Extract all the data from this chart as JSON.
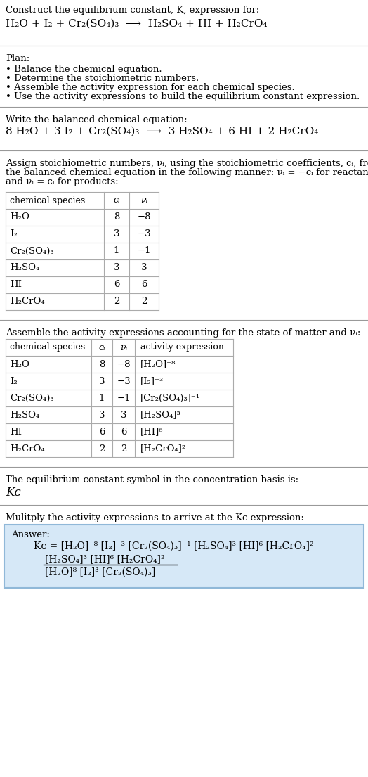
{
  "title_line1": "Construct the equilibrium constant, K, expression for:",
  "title_line2": "H₂O + I₂ + Cr₂(SO₄)₃  ⟶  H₂SO₄ + HI + H₂CrO₄",
  "plan_header": "Plan:",
  "plan_items": [
    "• Balance the chemical equation.",
    "• Determine the stoichiometric numbers.",
    "• Assemble the activity expression for each chemical species.",
    "• Use the activity expressions to build the equilibrium constant expression."
  ],
  "balanced_header": "Write the balanced chemical equation:",
  "balanced_eq": "8 H₂O + 3 I₂ + Cr₂(SO₄)₃  ⟶  3 H₂SO₄ + 6 HI + 2 H₂CrO₄",
  "stoich_header_lines": [
    "Assign stoichiometric numbers, νᵢ, using the stoichiometric coefficients, cᵢ, from",
    "the balanced chemical equation in the following manner: νᵢ = −cᵢ for reactants",
    "and νᵢ = cᵢ for products:"
  ],
  "table1_headers": [
    "chemical species",
    "cᵢ",
    "νᵢ"
  ],
  "table1_rows": [
    [
      "H₂O",
      "8",
      "−8"
    ],
    [
      "I₂",
      "3",
      "−3"
    ],
    [
      "Cr₂(SO₄)₃",
      "1",
      "−1"
    ],
    [
      "H₂SO₄",
      "3",
      "3"
    ],
    [
      "HI",
      "6",
      "6"
    ],
    [
      "H₂CrO₄",
      "2",
      "2"
    ]
  ],
  "activity_header": "Assemble the activity expressions accounting for the state of matter and νᵢ:",
  "table2_headers": [
    "chemical species",
    "cᵢ",
    "νᵢ",
    "activity expression"
  ],
  "table2_rows": [
    [
      "H₂O",
      "8",
      "−8",
      "[H₂O]⁻⁸"
    ],
    [
      "I₂",
      "3",
      "−3",
      "[I₂]⁻³"
    ],
    [
      "Cr₂(SO₄)₃",
      "1",
      "−1",
      "[Cr₂(SO₄)₃]⁻¹"
    ],
    [
      "H₂SO₄",
      "3",
      "3",
      "[H₂SO₄]³"
    ],
    [
      "HI",
      "6",
      "6",
      "[HI]⁶"
    ],
    [
      "H₂CrO₄",
      "2",
      "2",
      "[H₂CrO₄]²"
    ]
  ],
  "kc_header": "The equilibrium constant symbol in the concentration basis is:",
  "kc_symbol": "Kᴄ",
  "multiply_header": "Mulitply the activity expressions to arrive at the Kᴄ expression:",
  "answer_label": "Answer:",
  "answer_kc_line": "Kᴄ = [H₂O]⁻⁸ [I₂]⁻³ [Cr₂(SO₄)₃]⁻¹ [H₂SO₄]³ [HI]⁶ [H₂CrO₄]²",
  "answer_num": "[H₂SO₄]³ [HI]⁶ [H₂CrO₄]²",
  "answer_den": "[H₂O]⁸ [I₂]³ [Cr₂(SO₄)₃]",
  "bg_color": "#ffffff",
  "text_color": "#000000",
  "answer_box_facecolor": "#d6e8f7",
  "answer_box_edgecolor": "#90b8d8",
  "table_line_color": "#aaaaaa",
  "sep_line_color": "#999999",
  "font_size": 9.5,
  "title2_font_size": 11.0,
  "balanced_eq_font_size": 11.0,
  "kc_sym_font_size": 12.0,
  "answer_font_size": 10.0
}
